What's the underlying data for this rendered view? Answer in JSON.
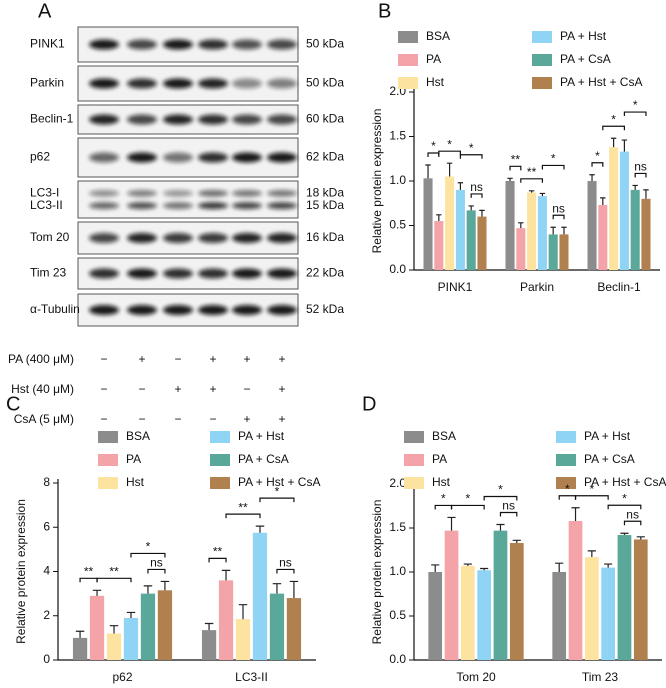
{
  "panel_labels": [
    "A",
    "B",
    "C",
    "D"
  ],
  "blot": {
    "rows": [
      {
        "labels": [
          "PINK1"
        ],
        "kda": [
          "50 kDa"
        ]
      },
      {
        "labels": [
          "Parkin"
        ],
        "kda": [
          "50 kDa"
        ]
      },
      {
        "labels": [
          "Beclin-1"
        ],
        "kda": [
          "60 kDa"
        ]
      },
      {
        "labels": [
          "p62"
        ],
        "kda": [
          "62 kDa"
        ]
      },
      {
        "labels": [
          "LC3-I",
          "LC3-II"
        ],
        "kda": [
          "18 kDa",
          "15 kDa"
        ]
      },
      {
        "labels": [
          "Tom 20"
        ],
        "kda": [
          "16 kDa"
        ]
      },
      {
        "labels": [
          "Tim 23"
        ],
        "kda": [
          "22 kDa"
        ]
      },
      {
        "labels": [
          "α-Tubulin"
        ],
        "kda": [
          "52 kDa"
        ]
      }
    ],
    "treatments": [
      {
        "label": "PA (400 μM)",
        "signs": [
          "−",
          "+",
          "−",
          "+",
          "+",
          "+"
        ]
      },
      {
        "label": "Hst (40 μM)",
        "signs": [
          "−",
          "−",
          "+",
          "+",
          "−",
          "+"
        ]
      },
      {
        "label": "CsA (5 μM)",
        "signs": [
          "−",
          "−",
          "−",
          "−",
          "+",
          "+"
        ]
      }
    ]
  },
  "chart_data": [
    {
      "type": "bar",
      "y_label": "Relative protein expression",
      "categories": [
        "PINK1",
        "Parkin",
        "Beclin-1"
      ],
      "ylim": [
        0,
        2
      ],
      "yticks": [
        {
          "value": 0,
          "label": "0.0"
        },
        0.5,
        {
          "value": 1,
          "label": "1.0"
        },
        1.5,
        {
          "value": 2,
          "label": "2.0"
        }
      ],
      "series": [
        {
          "name": "BSA",
          "color": "#8c8c8c",
          "values": [
            1.03,
            1.0,
            1.0
          ],
          "errors": [
            0.15,
            0.03,
            0.07
          ]
        },
        {
          "name": "PA",
          "color": "#f4a3a8",
          "values": [
            0.55,
            0.47,
            0.73
          ],
          "errors": [
            0.07,
            0.06,
            0.08
          ]
        },
        {
          "name": "Hst",
          "color": "#fde3a0",
          "values": [
            1.05,
            0.87,
            1.38
          ],
          "errors": [
            0.15,
            0.02,
            0.1
          ]
        },
        {
          "name": "PA + Hst",
          "color": "#8fd3f5",
          "values": [
            0.9,
            0.83,
            1.33
          ],
          "errors": [
            0.08,
            0.03,
            0.13
          ]
        },
        {
          "name": "PA + CsA",
          "color": "#5aa89a",
          "values": [
            0.67,
            0.4,
            0.9
          ],
          "errors": [
            0.05,
            0.08,
            0.05
          ]
        },
        {
          "name": "PA + Hst + CsA",
          "color": "#b0804f",
          "values": [
            0.6,
            0.4,
            0.8
          ],
          "errors": [
            0.07,
            0.08,
            0.1
          ]
        }
      ],
      "annotations": [
        {
          "label": "*",
          "category": 0,
          "between": [
            0,
            1
          ]
        },
        {
          "label": "*",
          "category": 0,
          "between": [
            1,
            3
          ]
        },
        {
          "label": "*",
          "category": 0,
          "between": [
            3,
            5
          ]
        },
        {
          "label": "ns",
          "category": 0,
          "between": [
            4,
            5
          ]
        },
        {
          "label": "**",
          "category": 1,
          "between": [
            0,
            1
          ]
        },
        {
          "label": "**",
          "category": 1,
          "between": [
            1,
            3
          ]
        },
        {
          "label": "*",
          "category": 1,
          "between": [
            3,
            5
          ]
        },
        {
          "label": "ns",
          "category": 1,
          "between": [
            4,
            5
          ]
        },
        {
          "label": "*",
          "category": 2,
          "between": [
            0,
            1
          ]
        },
        {
          "label": "*",
          "category": 2,
          "between": [
            1,
            3
          ]
        },
        {
          "label": "*",
          "category": 2,
          "between": [
            3,
            5
          ]
        },
        {
          "label": "ns",
          "category": 2,
          "between": [
            4,
            5
          ]
        }
      ]
    },
    {
      "type": "bar",
      "y_label": "Relative protein expression",
      "categories": [
        "p62",
        "LC3-II"
      ],
      "ylim": [
        0,
        8
      ],
      "yticks": [
        0,
        2,
        4,
        6,
        8
      ],
      "series": [
        {
          "name": "BSA",
          "color": "#8c8c8c",
          "values": [
            1.0,
            1.35
          ],
          "errors": [
            0.3,
            0.3
          ]
        },
        {
          "name": "PA",
          "color": "#f4a3a8",
          "values": [
            2.9,
            3.6
          ],
          "errors": [
            0.25,
            0.45
          ]
        },
        {
          "name": "Hst",
          "color": "#fde3a0",
          "values": [
            1.2,
            1.85
          ],
          "errors": [
            0.35,
            0.65
          ]
        },
        {
          "name": "PA + Hst",
          "color": "#8fd3f5",
          "values": [
            1.9,
            5.75
          ],
          "errors": [
            0.25,
            0.3
          ]
        },
        {
          "name": "PA + CsA",
          "color": "#5aa89a",
          "values": [
            3.0,
            3.0
          ],
          "errors": [
            0.35,
            0.45
          ]
        },
        {
          "name": "PA + Hst + CsA",
          "color": "#b0804f",
          "values": [
            3.15,
            2.8
          ],
          "errors": [
            0.4,
            0.75
          ]
        }
      ],
      "annotations": [
        {
          "label": "**",
          "category": 0,
          "between": [
            0,
            1
          ]
        },
        {
          "label": "**",
          "category": 0,
          "between": [
            1,
            3
          ]
        },
        {
          "label": "*",
          "category": 0,
          "between": [
            3,
            5
          ]
        },
        {
          "label": "ns",
          "category": 0,
          "between": [
            4,
            5
          ]
        },
        {
          "label": "**",
          "category": 1,
          "between": [
            0,
            1
          ]
        },
        {
          "label": "**",
          "category": 1,
          "between": [
            1,
            3
          ]
        },
        {
          "label": "*",
          "category": 1,
          "between": [
            3,
            5
          ]
        },
        {
          "label": "ns",
          "category": 1,
          "between": [
            4,
            5
          ]
        }
      ]
    },
    {
      "type": "bar",
      "y_label": "Relative protein expression",
      "categories": [
        "Tom 20",
        "Tim 23"
      ],
      "ylim": [
        0,
        2
      ],
      "yticks": [
        {
          "value": 0,
          "label": "0.0"
        },
        0.5,
        {
          "value": 1,
          "label": "1.0"
        },
        1.5,
        {
          "value": 2,
          "label": "2.0"
        }
      ],
      "series": [
        {
          "name": "BSA",
          "color": "#8c8c8c",
          "values": [
            1.0,
            1.0
          ],
          "errors": [
            0.08,
            0.1
          ]
        },
        {
          "name": "PA",
          "color": "#f4a3a8",
          "values": [
            1.47,
            1.58
          ],
          "errors": [
            0.15,
            0.15
          ]
        },
        {
          "name": "Hst",
          "color": "#fde3a0",
          "values": [
            1.07,
            1.17
          ],
          "errors": [
            0.02,
            0.07
          ]
        },
        {
          "name": "PA + Hst",
          "color": "#8fd3f5",
          "values": [
            1.02,
            1.05
          ],
          "errors": [
            0.02,
            0.04
          ]
        },
        {
          "name": "PA + CsA",
          "color": "#5aa89a",
          "values": [
            1.47,
            1.42
          ],
          "errors": [
            0.07,
            0.02
          ]
        },
        {
          "name": "PA + Hst + CsA",
          "color": "#b0804f",
          "values": [
            1.33,
            1.37
          ],
          "errors": [
            0.03,
            0.03
          ]
        }
      ],
      "annotations": [
        {
          "label": "*",
          "category": 0,
          "between": [
            0,
            1
          ]
        },
        {
          "label": "*",
          "category": 0,
          "between": [
            1,
            3
          ]
        },
        {
          "label": "*",
          "category": 0,
          "between": [
            3,
            5
          ]
        },
        {
          "label": "ns",
          "category": 0,
          "between": [
            4,
            5
          ]
        },
        {
          "label": "*",
          "category": 1,
          "between": [
            0,
            1
          ]
        },
        {
          "label": "*",
          "category": 1,
          "between": [
            1,
            3
          ]
        },
        {
          "label": "*",
          "category": 1,
          "between": [
            3,
            5
          ]
        },
        {
          "label": "ns",
          "category": 1,
          "between": [
            4,
            5
          ]
        }
      ]
    }
  ]
}
